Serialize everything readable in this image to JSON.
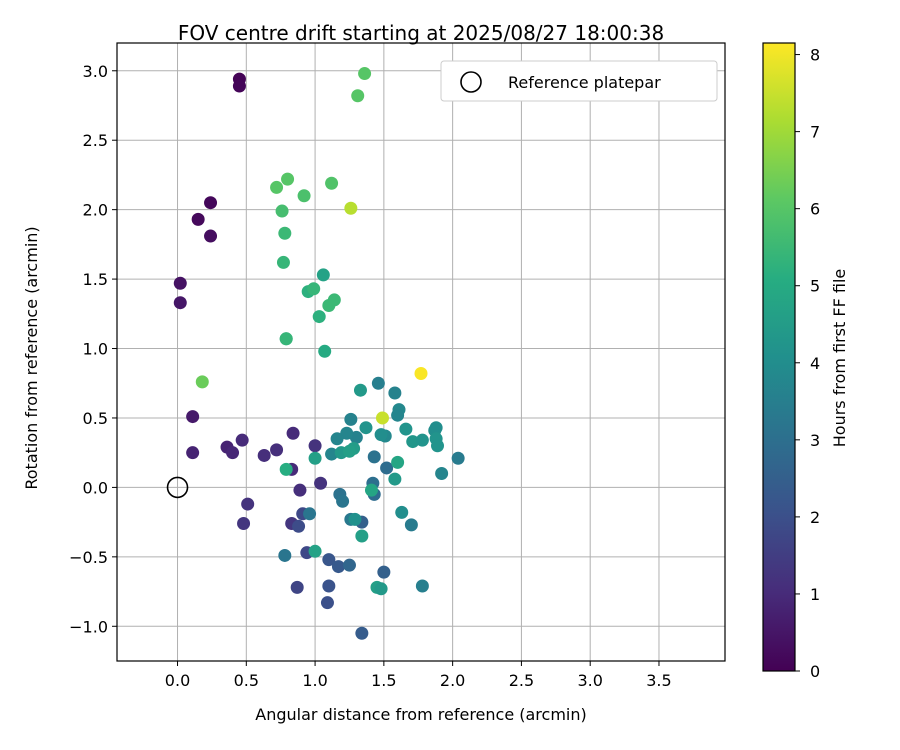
{
  "chart_data": {
    "type": "scatter",
    "title": "FOV centre drift starting at 2025/08/27 18:00:38",
    "xlabel": "Angular distance from reference (arcmin)",
    "ylabel": "Rotation from reference (arcmin)",
    "xlim": [
      -0.44,
      3.98
    ],
    "ylim": [
      -1.25,
      3.2
    ],
    "x_ticks": [
      0.0,
      0.5,
      1.0,
      1.5,
      2.0,
      2.5,
      3.0,
      3.5
    ],
    "x_tick_labels": [
      "0.0",
      "0.5",
      "1.0",
      "1.5",
      "2.0",
      "2.5",
      "3.0",
      "3.5"
    ],
    "y_ticks": [
      -1.0,
      -0.5,
      0.0,
      0.5,
      1.0,
      1.5,
      2.0,
      2.5,
      3.0
    ],
    "y_tick_labels": [
      "−1.0",
      "−0.5",
      "0.0",
      "0.5",
      "1.0",
      "1.5",
      "2.0",
      "2.5",
      "3.0"
    ],
    "grid": true,
    "legend": {
      "position": "top-right",
      "entries": [
        {
          "label": "Reference platepar",
          "marker": "open-circle"
        }
      ]
    },
    "reference_point": {
      "x": 0.0,
      "y": 0.0
    },
    "colorbar": {
      "label": "Hours from first FF file",
      "colormap": "viridis",
      "range": [
        0,
        8.15
      ],
      "ticks": [
        0,
        1,
        2,
        3,
        4,
        5,
        6,
        7,
        8
      ],
      "tick_labels": [
        "0",
        "1",
        "2",
        "3",
        "4",
        "5",
        "6",
        "7",
        "8"
      ]
    },
    "points": [
      {
        "x": 0.45,
        "y": 2.94,
        "c": 0.05
      },
      {
        "x": 0.45,
        "y": 2.89,
        "c": 0.1
      },
      {
        "x": 0.24,
        "y": 2.05,
        "c": 0.15
      },
      {
        "x": 0.15,
        "y": 1.93,
        "c": 0.2
      },
      {
        "x": 0.24,
        "y": 1.81,
        "c": 0.3
      },
      {
        "x": 0.02,
        "y": 1.47,
        "c": 0.4
      },
      {
        "x": 0.02,
        "y": 1.33,
        "c": 0.5
      },
      {
        "x": 0.11,
        "y": 0.51,
        "c": 0.6
      },
      {
        "x": 0.11,
        "y": 0.25,
        "c": 0.8
      },
      {
        "x": 0.36,
        "y": 0.29,
        "c": 0.8
      },
      {
        "x": 0.4,
        "y": 0.25,
        "c": 0.9
      },
      {
        "x": 0.47,
        "y": 0.34,
        "c": 1.0
      },
      {
        "x": 0.63,
        "y": 0.23,
        "c": 1.1
      },
      {
        "x": 0.72,
        "y": 0.27,
        "c": 1.1
      },
      {
        "x": 0.84,
        "y": 0.39,
        "c": 1.0
      },
      {
        "x": 0.83,
        "y": 0.13,
        "c": 1.0
      },
      {
        "x": 0.89,
        "y": -0.02,
        "c": 1.1
      },
      {
        "x": 0.51,
        "y": -0.12,
        "c": 1.2
      },
      {
        "x": 0.48,
        "y": -0.26,
        "c": 1.3
      },
      {
        "x": 0.83,
        "y": -0.26,
        "c": 1.3
      },
      {
        "x": 1.0,
        "y": 0.3,
        "c": 1.2
      },
      {
        "x": 1.04,
        "y": 0.03,
        "c": 1.2
      },
      {
        "x": 0.88,
        "y": -0.28,
        "c": 1.9
      },
      {
        "x": 0.91,
        "y": -0.19,
        "c": 1.8
      },
      {
        "x": 0.94,
        "y": -0.47,
        "c": 1.8
      },
      {
        "x": 0.87,
        "y": -0.72,
        "c": 1.7
      },
      {
        "x": 1.1,
        "y": -0.52,
        "c": 2.2
      },
      {
        "x": 1.17,
        "y": -0.57,
        "c": 2.3
      },
      {
        "x": 1.1,
        "y": -0.71,
        "c": 2.1
      },
      {
        "x": 1.09,
        "y": -0.83,
        "c": 2.0
      },
      {
        "x": 1.34,
        "y": -1.05,
        "c": 2.4
      },
      {
        "x": 1.5,
        "y": -0.61,
        "c": 2.5
      },
      {
        "x": 1.34,
        "y": -0.25,
        "c": 2.5
      },
      {
        "x": 1.25,
        "y": -0.56,
        "c": 2.7
      },
      {
        "x": 0.96,
        "y": -0.19,
        "c": 3.2
      },
      {
        "x": 0.78,
        "y": -0.49,
        "c": 3.2
      },
      {
        "x": 1.18,
        "y": -0.05,
        "c": 3.1
      },
      {
        "x": 1.2,
        "y": -0.1,
        "c": 3.2
      },
      {
        "x": 1.26,
        "y": -0.23,
        "c": 3.3
      },
      {
        "x": 1.42,
        "y": 0.03,
        "c": 3.0
      },
      {
        "x": 1.43,
        "y": -0.05,
        "c": 2.9
      },
      {
        "x": 1.52,
        "y": 0.14,
        "c": 2.9
      },
      {
        "x": 1.43,
        "y": 0.22,
        "c": 3.1
      },
      {
        "x": 1.7,
        "y": -0.27,
        "c": 3.4
      },
      {
        "x": 1.78,
        "y": -0.71,
        "c": 3.5
      },
      {
        "x": 1.46,
        "y": 0.75,
        "c": 3.5
      },
      {
        "x": 1.26,
        "y": 0.49,
        "c": 3.6
      },
      {
        "x": 1.3,
        "y": 0.36,
        "c": 3.6
      },
      {
        "x": 1.23,
        "y": 0.39,
        "c": 3.7
      },
      {
        "x": 1.16,
        "y": 0.35,
        "c": 3.7
      },
      {
        "x": 1.12,
        "y": 0.24,
        "c": 3.7
      },
      {
        "x": 1.58,
        "y": 0.68,
        "c": 3.6
      },
      {
        "x": 1.61,
        "y": 0.56,
        "c": 3.8
      },
      {
        "x": 1.6,
        "y": 0.52,
        "c": 3.7
      },
      {
        "x": 1.51,
        "y": 0.37,
        "c": 3.8
      },
      {
        "x": 2.04,
        "y": 0.21,
        "c": 3.4
      },
      {
        "x": 1.92,
        "y": 0.1,
        "c": 3.7
      },
      {
        "x": 1.88,
        "y": 0.43,
        "c": 4.0
      },
      {
        "x": 1.87,
        "y": 0.41,
        "c": 4.0
      },
      {
        "x": 1.88,
        "y": 0.35,
        "c": 4.2
      },
      {
        "x": 1.89,
        "y": 0.3,
        "c": 4.2
      },
      {
        "x": 1.66,
        "y": 0.42,
        "c": 4.2
      },
      {
        "x": 1.71,
        "y": 0.33,
        "c": 4.3
      },
      {
        "x": 1.78,
        "y": 0.34,
        "c": 4.2
      },
      {
        "x": 1.63,
        "y": -0.18,
        "c": 4.0
      },
      {
        "x": 1.48,
        "y": 0.38,
        "c": 4.0
      },
      {
        "x": 1.37,
        "y": 0.43,
        "c": 4.2
      },
      {
        "x": 1.33,
        "y": 0.7,
        "c": 4.4
      },
      {
        "x": 1.28,
        "y": 0.28,
        "c": 4.5
      },
      {
        "x": 1.19,
        "y": 0.25,
        "c": 4.4
      },
      {
        "x": 1.25,
        "y": 0.26,
        "c": 4.6
      },
      {
        "x": 1.0,
        "y": 0.21,
        "c": 4.6
      },
      {
        "x": 1.29,
        "y": -0.23,
        "c": 4.1
      },
      {
        "x": 1.34,
        "y": -0.35,
        "c": 4.6
      },
      {
        "x": 1.58,
        "y": 0.06,
        "c": 4.4
      },
      {
        "x": 1.6,
        "y": 0.18,
        "c": 4.8
      },
      {
        "x": 1.41,
        "y": -0.02,
        "c": 4.8
      },
      {
        "x": 1.45,
        "y": -0.72,
        "c": 4.6
      },
      {
        "x": 1.48,
        "y": -0.73,
        "c": 4.4
      },
      {
        "x": 1.0,
        "y": -0.46,
        "c": 4.7
      },
      {
        "x": 1.06,
        "y": 1.53,
        "c": 4.7
      },
      {
        "x": 1.07,
        "y": 0.98,
        "c": 5.0
      },
      {
        "x": 0.79,
        "y": 1.07,
        "c": 5.0
      },
      {
        "x": 0.79,
        "y": 0.13,
        "c": 5.1
      },
      {
        "x": 0.79,
        "y": 1.07,
        "c": 5.4
      },
      {
        "x": 1.03,
        "y": 1.23,
        "c": 5.2
      },
      {
        "x": 0.95,
        "y": 1.41,
        "c": 5.2
      },
      {
        "x": 0.99,
        "y": 1.43,
        "c": 5.4
      },
      {
        "x": 1.1,
        "y": 1.31,
        "c": 5.5
      },
      {
        "x": 1.14,
        "y": 1.35,
        "c": 5.5
      },
      {
        "x": 0.77,
        "y": 1.62,
        "c": 5.4
      },
      {
        "x": 0.78,
        "y": 1.83,
        "c": 5.5
      },
      {
        "x": 0.76,
        "y": 1.99,
        "c": 5.7
      },
      {
        "x": 0.92,
        "y": 2.1,
        "c": 5.8
      },
      {
        "x": 0.8,
        "y": 2.22,
        "c": 6.0
      },
      {
        "x": 0.72,
        "y": 2.16,
        "c": 6.0
      },
      {
        "x": 1.12,
        "y": 2.19,
        "c": 5.9
      },
      {
        "x": 1.31,
        "y": 2.82,
        "c": 6.0
      },
      {
        "x": 1.36,
        "y": 2.98,
        "c": 6.0
      },
      {
        "x": 0.18,
        "y": 0.76,
        "c": 6.3
      },
      {
        "x": 1.26,
        "y": 2.01,
        "c": 7.3
      },
      {
        "x": 1.49,
        "y": 0.5,
        "c": 7.5
      },
      {
        "x": 1.77,
        "y": 0.82,
        "c": 8.1
      }
    ]
  }
}
